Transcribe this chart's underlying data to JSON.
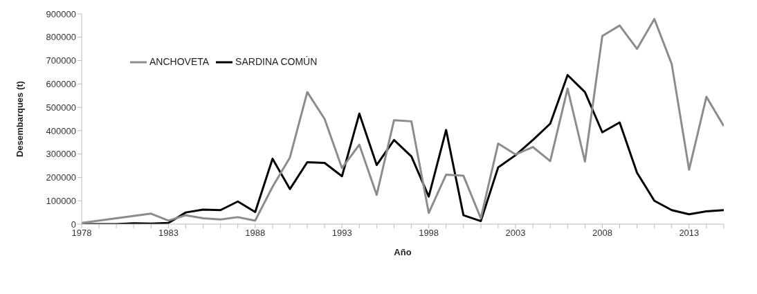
{
  "chart_data": {
    "type": "line",
    "xlabel": "Año",
    "ylabel": "Desembarques (t)",
    "x": [
      1978,
      1979,
      1980,
      1981,
      1982,
      1983,
      1984,
      1985,
      1986,
      1987,
      1988,
      1989,
      1990,
      1991,
      1992,
      1993,
      1994,
      1995,
      1996,
      1997,
      1998,
      1999,
      2000,
      2001,
      2002,
      2003,
      2004,
      2005,
      2006,
      2007,
      2008,
      2009,
      2010,
      2011,
      2012,
      2013,
      2014,
      2015
    ],
    "series": [
      {
        "name": "SARDINA COMÚN",
        "color": "#000000",
        "values": [
          0,
          0,
          0,
          4000,
          2000,
          5000,
          50000,
          62000,
          60000,
          97000,
          52000,
          280000,
          150000,
          265000,
          262000,
          205000,
          473000,
          253000,
          360000,
          290000,
          118000,
          403000,
          38000,
          13000,
          243000,
          295000,
          360000,
          430000,
          638000,
          565000,
          393000,
          435000,
          220000,
          100000,
          60000,
          42000,
          55000,
          60000
        ]
      },
      {
        "name": "ANCHOVETA",
        "color": "#8c8c8c",
        "values": [
          5000,
          null,
          null,
          null,
          45000,
          15000,
          38000,
          25000,
          20000,
          30000,
          15000,
          160000,
          285000,
          565000,
          450000,
          240000,
          340000,
          125000,
          445000,
          440000,
          48000,
          212000,
          207000,
          25000,
          345000,
          298000,
          330000,
          270000,
          580000,
          268000,
          805000,
          850000,
          750000,
          878000,
          685000,
          233000,
          545000,
          420000
        ]
      }
    ],
    "xlim": [
      1978,
      2015
    ],
    "xticks": [
      1978,
      {
        "value": 1979,
        "label": null
      },
      {
        "value": 1980,
        "label": null
      },
      {
        "value": 1981,
        "label": null
      },
      {
        "value": 1982,
        "label": null
      },
      1983,
      {
        "value": 1984,
        "label": null
      },
      {
        "value": 1985,
        "label": null
      },
      {
        "value": 1986,
        "label": null
      },
      {
        "value": 1987,
        "label": null
      },
      1988,
      {
        "value": 1989,
        "label": null
      },
      {
        "value": 1990,
        "label": null
      },
      {
        "value": 1991,
        "label": null
      },
      {
        "value": 1992,
        "label": null
      },
      1993,
      {
        "value": 1994,
        "label": null
      },
      {
        "value": 1995,
        "label": null
      },
      {
        "value": 1996,
        "label": null
      },
      {
        "value": 1997,
        "label": null
      },
      1998,
      {
        "value": 1999,
        "label": null
      },
      {
        "value": 2000,
        "label": null
      },
      {
        "value": 2001,
        "label": null
      },
      {
        "value": 2002,
        "label": null
      },
      2003,
      {
        "value": 2004,
        "label": null
      },
      {
        "value": 2005,
        "label": null
      },
      {
        "value": 2006,
        "label": null
      },
      {
        "value": 2007,
        "label": null
      },
      2008,
      {
        "value": 2009,
        "label": null
      },
      {
        "value": 2010,
        "label": null
      },
      {
        "value": 2011,
        "label": null
      },
      {
        "value": 2012,
        "label": null
      },
      2013,
      {
        "value": 2014,
        "label": null
      },
      {
        "value": 2015,
        "label": null
      }
    ],
    "ylim": [
      0,
      900000
    ],
    "yticks": [
      0,
      100000,
      200000,
      300000,
      400000,
      500000,
      600000,
      700000,
      800000,
      900000
    ],
    "legend": "top left",
    "grid": false,
    "marker": "none",
    "line_style": "solid"
  }
}
